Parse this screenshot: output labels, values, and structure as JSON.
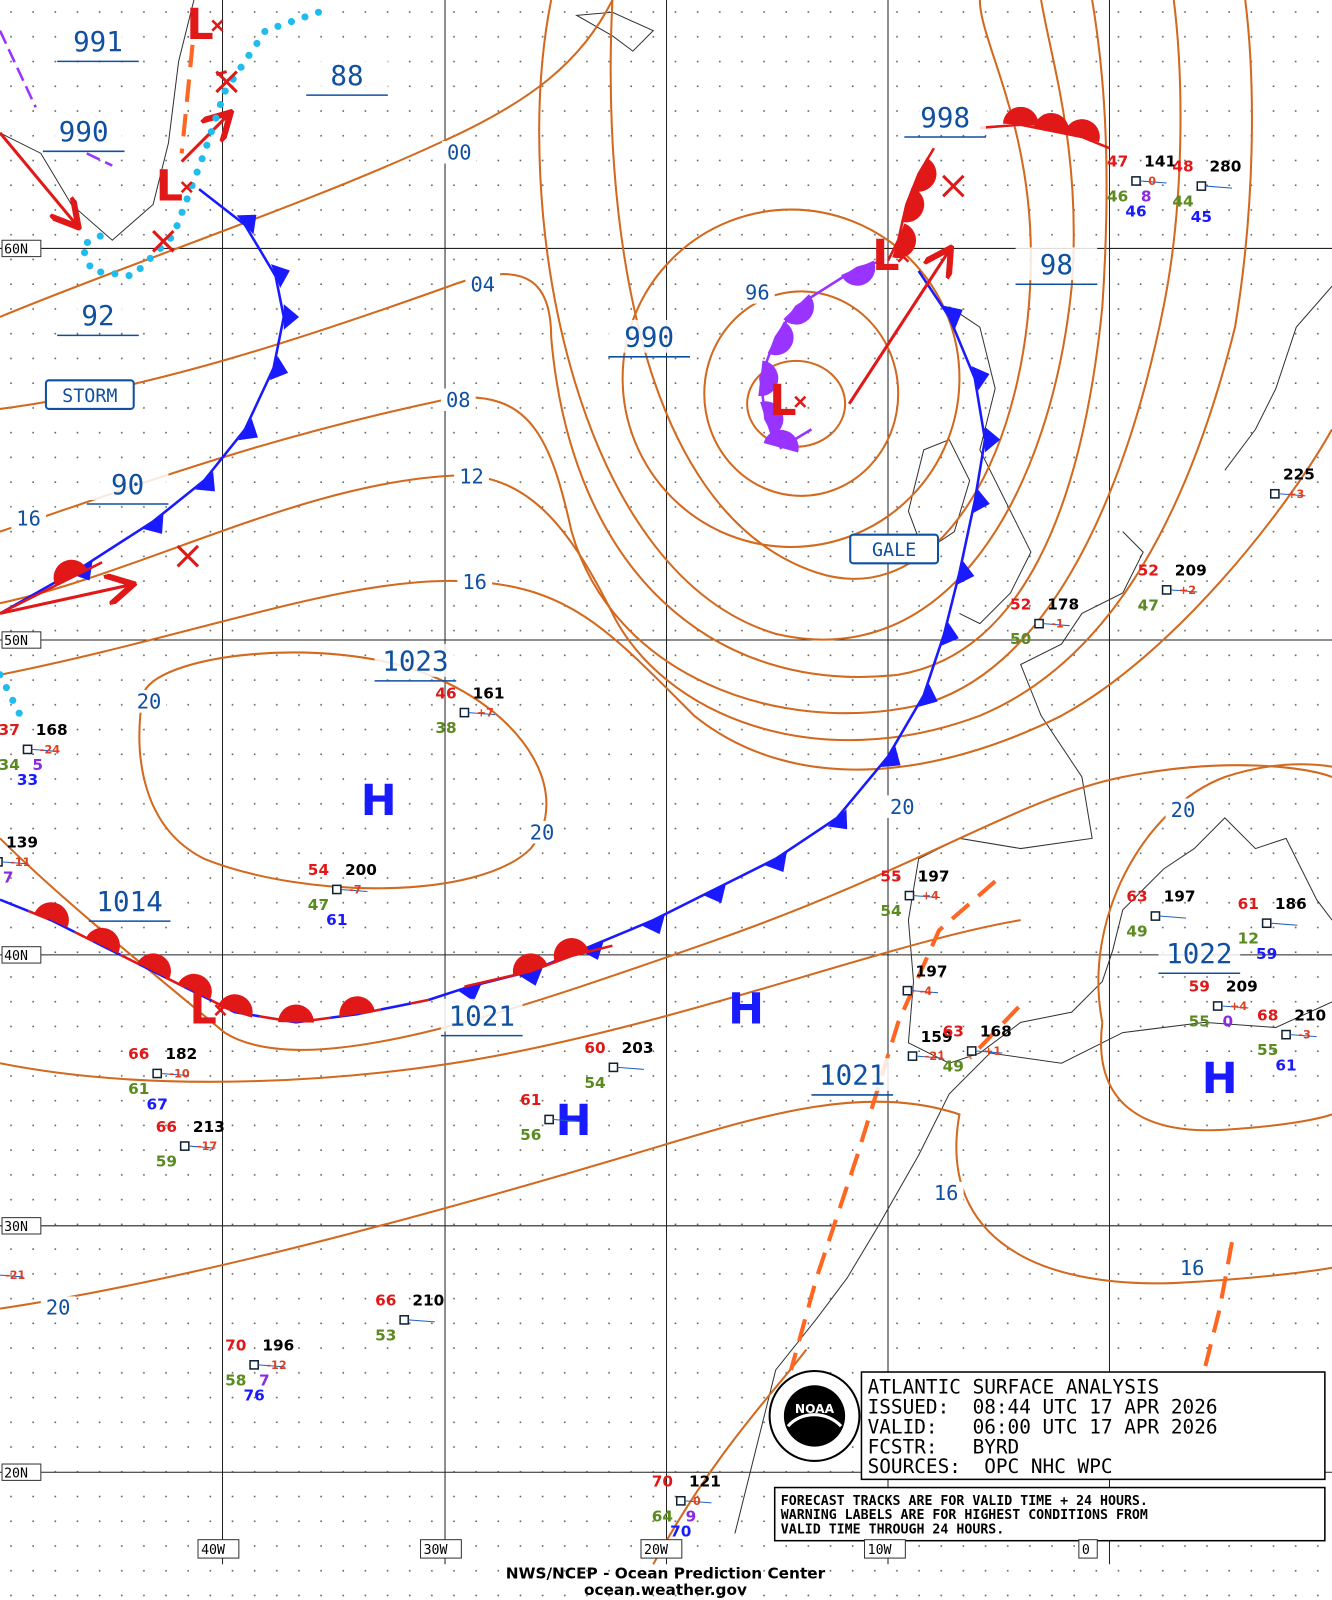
{
  "map_labels": {
    "latitudes": [
      "60N",
      "50N",
      "40N",
      "30N",
      "20N"
    ],
    "longitudes": [
      "40W",
      "30W",
      "20W",
      "10W",
      "0"
    ]
  },
  "isobar_labels": {
    "boxed": [
      "991",
      "990",
      "88",
      "92",
      "90",
      "990",
      "998",
      "98",
      "1023",
      "1014",
      "1021",
      "1021",
      "1022"
    ],
    "plain": [
      "00",
      "04",
      "08",
      "12",
      "16",
      "16",
      "96",
      "20",
      "20",
      "20",
      "20",
      "16",
      "16",
      "20"
    ]
  },
  "warnings": [
    "STORM",
    "GALE"
  ],
  "pressure_centers": {
    "highs": [
      "H",
      "H",
      "H",
      "H"
    ],
    "lows": [
      "L",
      "L",
      "L",
      "L",
      "L"
    ]
  },
  "stations": [
    {
      "air_temp": "47",
      "pressure": "141",
      "tendency": "0",
      "dew_point": "46",
      "wave": "8",
      "sea_temp": "46"
    },
    {
      "air_temp": "48",
      "pressure": "280",
      "dew_point": "44",
      "sea_temp": "45"
    },
    {
      "pressure": "225",
      "tendency": "+3"
    },
    {
      "air_temp": "52",
      "pressure": "209",
      "tendency": "+2",
      "dew_point": "47"
    },
    {
      "air_temp": "52",
      "pressure": "178",
      "tendency": "-1",
      "dew_point": "50"
    },
    {
      "air_temp": "46",
      "pressure": "161",
      "tendency": "+7",
      "dew_point": "38"
    },
    {
      "air_temp": "37",
      "pressure": "168",
      "tendency": "-24",
      "dew_point": "34",
      "wave": "5",
      "sea_temp": "33"
    },
    {
      "pressure": "139",
      "tendency": "-11",
      "wave": "7"
    },
    {
      "air_temp": "54",
      "pressure": "200",
      "tendency": "-7",
      "dew_point": "47",
      "sea_temp": "61"
    },
    {
      "air_temp": "55",
      "pressure": "197",
      "tendency": "+4",
      "dew_point": "54"
    },
    {
      "air_temp": "63",
      "pressure": "197",
      "dew_point": "49"
    },
    {
      "air_temp": "61",
      "pressure": "186",
      "dew_point": "12",
      "sea_temp": "59"
    },
    {
      "pressure": "197",
      "tendency": "-4"
    },
    {
      "pressure": "159",
      "tendency": "-21"
    },
    {
      "air_temp": "63",
      "pressure": "168",
      "tendency": "+1",
      "dew_point": "49"
    },
    {
      "air_temp": "59",
      "pressure": "209",
      "tendency": "+4",
      "dew_point": "55",
      "wave": "0"
    },
    {
      "air_temp": "68",
      "pressure": "210",
      "tendency": "-3",
      "dew_point": "55",
      "sea_temp": "61"
    },
    {
      "air_temp": "66",
      "pressure": "182",
      "tendency": "-10",
      "dew_point": "61",
      "sea_temp": "67"
    },
    {
      "air_temp": "60",
      "pressure": "203",
      "dew_point": "54"
    },
    {
      "air_temp": "61",
      "dew_point": "56"
    },
    {
      "air_temp": "66",
      "pressure": "213",
      "tendency": "-17",
      "dew_point": "59"
    },
    {
      "tendency": "-21"
    },
    {
      "air_temp": "66",
      "pressure": "210",
      "dew_point": "53"
    },
    {
      "air_temp": "70",
      "pressure": "196",
      "tendency": "-12",
      "dew_point": "58",
      "wave": "7",
      "sea_temp": "76"
    },
    {
      "air_temp": "70",
      "pressure": "121",
      "tendency": "0",
      "dew_point": "64",
      "wave": "9",
      "sea_temp": "70"
    }
  ],
  "info_box": {
    "lines": [
      "ATLANTIC SURFACE ANALYSIS",
      "ISSUED:  08:44 UTC 17 APR 2026",
      "VALID:   06:00 UTC 17 APR 2026",
      "FCSTR:   BYRD",
      "SOURCES:  OPC NHC WPC"
    ]
  },
  "note_box": {
    "lines": [
      "FORECAST TRACKS ARE FOR VALID TIME + 24 HOURS.",
      "WARNING LABELS ARE FOR HIGHEST CONDITIONS FROM",
      "VALID TIME THROUGH 24 HOURS."
    ]
  },
  "logo": {
    "text": "NOAA"
  },
  "footer": {
    "agency": "NWS/NCEP - Ocean Prediction Center",
    "url": "ocean.weather.gov"
  }
}
